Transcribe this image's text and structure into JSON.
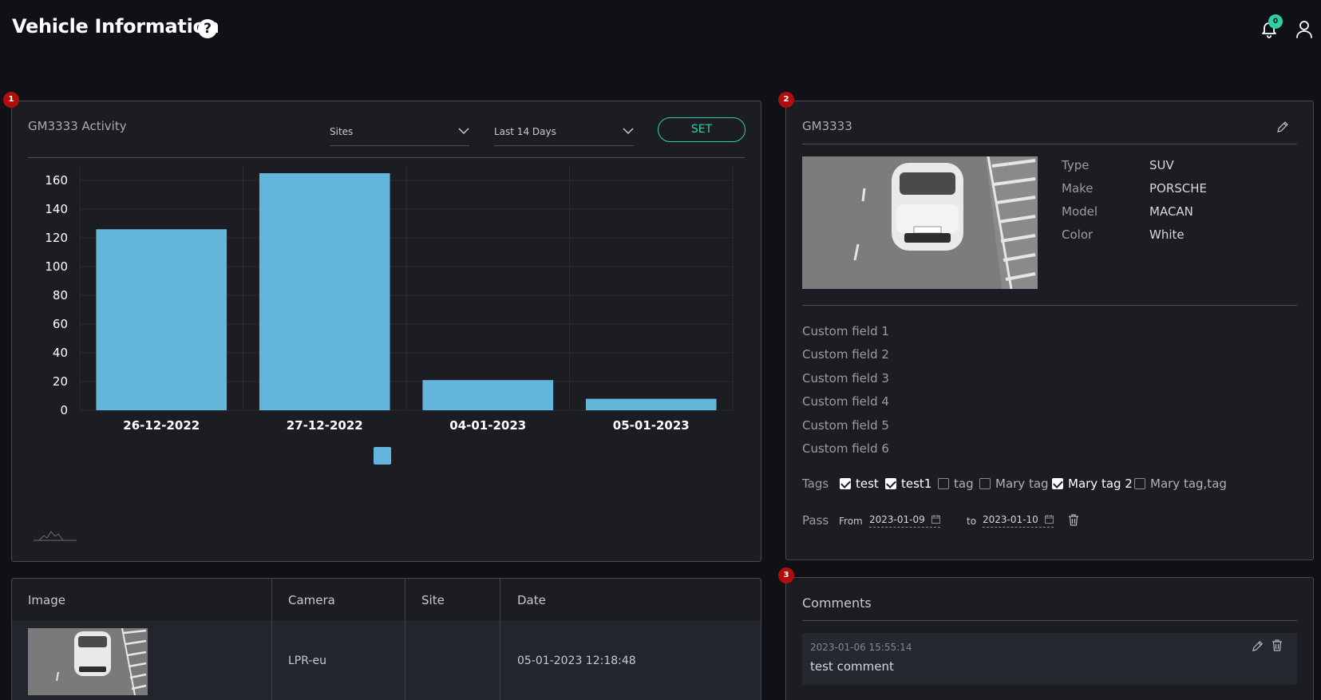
{
  "header": {
    "title": "Vehicle Information",
    "help_icon": "?",
    "notifications_count": "0"
  },
  "badges": [
    "1",
    "2",
    "3"
  ],
  "activity": {
    "title": "GM3333 Activity",
    "sites_select": "Sites",
    "range_select": "Last 14 Days",
    "set_label": "SET"
  },
  "chart_data": {
    "type": "bar",
    "categories": [
      "26-12-2022",
      "27-12-2022",
      "04-01-2023",
      "05-01-2023"
    ],
    "values": [
      126,
      165,
      21,
      8
    ],
    "ylim": [
      0,
      170
    ],
    "yticks": [
      0,
      20,
      40,
      60,
      80,
      100,
      120,
      140,
      160
    ],
    "grid": true,
    "legend": "bottom-center",
    "color": "#64b5dc",
    "title": "",
    "xlabel": "",
    "ylabel": ""
  },
  "vehicle": {
    "plate": "GM3333",
    "attributes": [
      {
        "key": "Type",
        "value": "SUV"
      },
      {
        "key": "Make",
        "value": "PORSCHE"
      },
      {
        "key": "Model",
        "value": "MACAN"
      },
      {
        "key": "Color",
        "value": "White"
      }
    ],
    "custom_fields": [
      "Custom field 1",
      "Custom field 2",
      "Custom field 3",
      "Custom field 4",
      "Custom field 5",
      "Custom field 6"
    ],
    "tags_label": "Tags",
    "tags": [
      {
        "label": "test",
        "checked": true
      },
      {
        "label": "test1",
        "checked": true
      },
      {
        "label": "tag",
        "checked": false
      },
      {
        "label": "Mary tag",
        "checked": false
      },
      {
        "label": "Mary tag 2",
        "checked": true
      },
      {
        "label": "Mary tag,tag",
        "checked": false
      }
    ],
    "pass": {
      "label": "Pass",
      "from_label": "From",
      "from_date": "2023-01-09",
      "to_label": "to",
      "to_date": "2023-01-10"
    }
  },
  "table": {
    "columns": [
      "Image",
      "Camera",
      "Site",
      "Date"
    ],
    "rows": [
      {
        "camera": "LPR-eu",
        "site": "",
        "date": "05-01-2023 12:18:48"
      }
    ]
  },
  "comments": {
    "title": "Comments",
    "items": [
      {
        "timestamp": "2023-01-06 15:55:14",
        "text": "test comment"
      }
    ]
  }
}
